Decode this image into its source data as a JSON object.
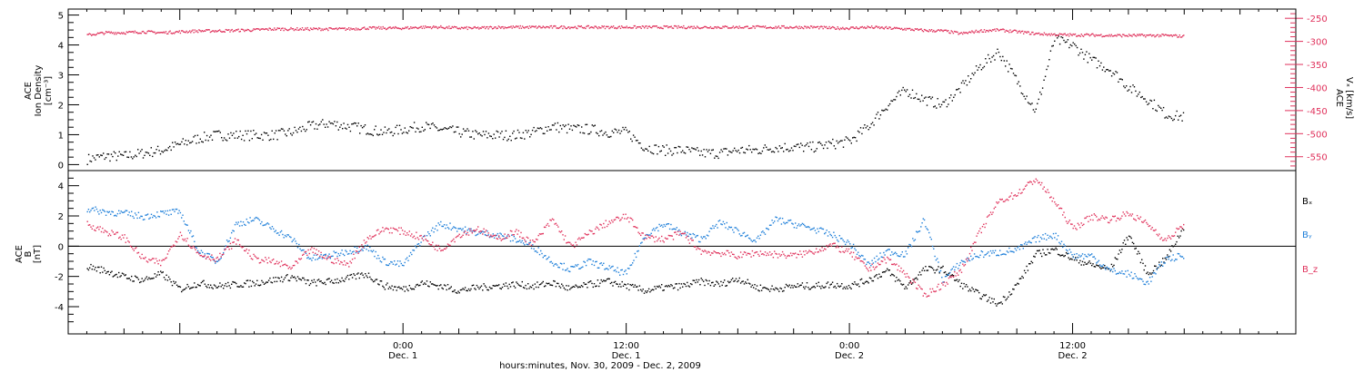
{
  "colors": {
    "black": "#000000",
    "red": "#e0325c",
    "blue": "#1e7fd9"
  },
  "chart_data": [
    {
      "type": "scatter",
      "panel": "density",
      "ylabel_lines": [
        "ACE",
        "Ion Density",
        "[cm⁻³]"
      ],
      "ylim": [
        -0.2,
        5.2
      ],
      "yticks": [
        "0",
        "1",
        "2",
        "3",
        "4",
        "5"
      ],
      "y2label_lines": [
        "ACE",
        "Vₓ [km/s]"
      ],
      "y2lim": [
        -580,
        -230
      ],
      "y2ticks": [
        "-250",
        "-300",
        "-350",
        "-400",
        "-450",
        "-500",
        "-550"
      ],
      "x_range_hours": [
        -18,
        48
      ],
      "series": [
        {
          "color_key": "black",
          "axis": "left",
          "x": [
            -17,
            -16,
            -15,
            -14,
            -13,
            -12,
            -11,
            -10,
            -9,
            -8,
            -7,
            -6,
            -5,
            -4,
            -3,
            -2,
            -1,
            0,
            1,
            2,
            3,
            4,
            5,
            6,
            7,
            8,
            9,
            10,
            11,
            12,
            13,
            14,
            15,
            16,
            17,
            18,
            19,
            20,
            21,
            22,
            23,
            24,
            25,
            26,
            27,
            28,
            29,
            30,
            31,
            32,
            33,
            34,
            35,
            36,
            37,
            38,
            39,
            40,
            41,
            42
          ],
          "y": [
            0.2,
            0.3,
            0.3,
            0.4,
            0.5,
            0.7,
            0.9,
            1.0,
            1.0,
            1.0,
            1.0,
            1.1,
            1.3,
            1.4,
            1.3,
            1.2,
            1.1,
            1.2,
            1.3,
            1.2,
            1.1,
            1.0,
            1.0,
            1.0,
            1.1,
            1.3,
            1.2,
            1.2,
            1.1,
            1.1,
            0.6,
            0.5,
            0.5,
            0.4,
            0.4,
            0.5,
            0.5,
            0.6,
            0.6,
            0.6,
            0.7,
            0.8,
            1.3,
            2.0,
            2.5,
            2.2,
            2.0,
            2.6,
            3.3,
            3.8,
            2.8,
            1.8,
            4.2,
            4.0,
            3.5,
            3.2,
            2.6,
            2.2,
            1.7,
            1.6
          ]
        },
        {
          "color_key": "red",
          "axis": "right",
          "x": [
            -17,
            -16,
            -15,
            -14,
            -13,
            -12,
            -11,
            -10,
            -9,
            -8,
            -7,
            -6,
            -5,
            -4,
            -3,
            -2,
            -1,
            0,
            1,
            2,
            3,
            4,
            5,
            6,
            7,
            8,
            9,
            10,
            11,
            12,
            13,
            14,
            15,
            16,
            17,
            18,
            19,
            20,
            21,
            22,
            23,
            24,
            25,
            26,
            27,
            28,
            29,
            30,
            31,
            32,
            33,
            34,
            35,
            36,
            37,
            38,
            39,
            40,
            41,
            42
          ],
          "y": [
            -285,
            -280,
            -280,
            -278,
            -280,
            -278,
            -276,
            -276,
            -275,
            -274,
            -272,
            -272,
            -272,
            -272,
            -272,
            -270,
            -270,
            -270,
            -268,
            -268,
            -270,
            -270,
            -268,
            -268,
            -268,
            -268,
            -268,
            -268,
            -268,
            -268,
            -268,
            -268,
            -268,
            -268,
            -268,
            -268,
            -268,
            -268,
            -268,
            -268,
            -270,
            -270,
            -268,
            -270,
            -272,
            -275,
            -276,
            -282,
            -276,
            -274,
            -278,
            -282,
            -284,
            -285,
            -285,
            -286,
            -286,
            -286,
            -286,
            -288
          ]
        }
      ]
    },
    {
      "type": "scatter",
      "panel": "magnetic_field",
      "ylabel_lines": [
        "ACE",
        "B",
        "[nT]"
      ],
      "ylim": [
        -5.8,
        5.0
      ],
      "yticks": [
        "-4",
        "-2",
        "0",
        "2",
        "4"
      ],
      "x_range_hours": [
        -18,
        48
      ],
      "xticks": [
        {
          "hour": 0,
          "time": "0:00",
          "day": "Dec. 1"
        },
        {
          "hour": 12,
          "time": "12:00",
          "day": "Dec. 1"
        },
        {
          "hour": 24,
          "time": "0:00",
          "day": "Dec. 2"
        },
        {
          "hour": 36,
          "time": "12:00",
          "day": "Dec. 2"
        }
      ],
      "xlabel": "hours:minutes, Nov. 30, 2009 - Dec. 2, 2009",
      "series": [
        {
          "name": "Bₓ",
          "color_key": "black",
          "x": [
            -17,
            -16,
            -15,
            -14,
            -13,
            -12,
            -11,
            -10,
            -9,
            -8,
            -7,
            -6,
            -5,
            -4,
            -3,
            -2,
            -1,
            0,
            1,
            2,
            3,
            4,
            5,
            6,
            7,
            8,
            9,
            10,
            11,
            12,
            13,
            14,
            15,
            16,
            17,
            18,
            19,
            20,
            21,
            22,
            23,
            24,
            25,
            26,
            27,
            28,
            29,
            30,
            31,
            32,
            33,
            34,
            35,
            36,
            37,
            38,
            39,
            40,
            41,
            42
          ],
          "y": [
            -1.3,
            -1.6,
            -2.0,
            -2.2,
            -1.8,
            -2.8,
            -2.4,
            -2.6,
            -2.5,
            -2.4,
            -2.2,
            -2.0,
            -2.4,
            -2.3,
            -2.1,
            -1.8,
            -2.6,
            -2.8,
            -2.4,
            -2.6,
            -2.9,
            -2.7,
            -2.6,
            -2.5,
            -2.6,
            -2.4,
            -2.8,
            -2.5,
            -2.3,
            -2.6,
            -2.9,
            -2.7,
            -2.6,
            -2.3,
            -2.5,
            -2.1,
            -2.7,
            -2.8,
            -2.6,
            -2.6,
            -2.5,
            -2.6,
            -2.2,
            -1.6,
            -2.7,
            -1.5,
            -1.5,
            -2.5,
            -3.2,
            -3.8,
            -2.5,
            -0.5,
            -0.2,
            -0.8,
            -1.2,
            -1.5,
            0.8,
            -1.8,
            -0.8,
            1.4
          ]
        },
        {
          "name": "Bᵧ",
          "color_key": "blue",
          "x": [
            -17,
            -16,
            -15,
            -14,
            -13,
            -12,
            -11,
            -10,
            -9,
            -8,
            -7,
            -6,
            -5,
            -4,
            -3,
            -2,
            -1,
            0,
            1,
            2,
            3,
            4,
            5,
            6,
            7,
            8,
            9,
            10,
            11,
            12,
            13,
            14,
            15,
            16,
            17,
            18,
            19,
            20,
            21,
            22,
            23,
            24,
            25,
            26,
            27,
            28,
            29,
            30,
            31,
            32,
            33,
            34,
            35,
            36,
            37,
            38,
            39,
            40,
            41,
            42
          ],
          "y": [
            2.5,
            2.3,
            2.2,
            2.0,
            2.2,
            2.3,
            -0.3,
            -1.0,
            1.5,
            1.8,
            1.2,
            0.5,
            -0.8,
            -0.6,
            -0.3,
            0.0,
            -1.0,
            -1.2,
            0.5,
            1.5,
            1.2,
            0.9,
            0.8,
            0.5,
            0.0,
            -1.0,
            -1.5,
            -1.0,
            -1.4,
            -1.8,
            0.8,
            1.5,
            0.9,
            0.5,
            1.6,
            1.0,
            0.4,
            1.8,
            1.5,
            1.2,
            0.8,
            0.2,
            -1.2,
            -0.3,
            -0.5,
            1.8,
            -2.2,
            -1.0,
            -0.5,
            -0.4,
            -0.2,
            0.5,
            0.8,
            -0.6,
            -0.6,
            -1.6,
            -1.8,
            -2.4,
            -0.8,
            -0.6
          ]
        },
        {
          "name": "B_z",
          "color_key": "red",
          "x": [
            -17,
            -16,
            -15,
            -14,
            -13,
            -12,
            -11,
            -10,
            -9,
            -8,
            -7,
            -6,
            -5,
            -4,
            -3,
            -2,
            -1,
            0,
            1,
            2,
            3,
            4,
            5,
            6,
            7,
            8,
            9,
            10,
            11,
            12,
            13,
            14,
            15,
            16,
            17,
            18,
            19,
            20,
            21,
            22,
            23,
            24,
            25,
            26,
            27,
            28,
            29,
            30,
            31,
            32,
            33,
            34,
            35,
            36,
            37,
            38,
            39,
            40,
            41,
            42
          ],
          "y": [
            1.5,
            1.0,
            0.6,
            -0.8,
            -1.1,
            0.9,
            -0.5,
            -0.8,
            0.4,
            -0.8,
            -1.0,
            -1.4,
            -0.2,
            -0.8,
            -1.2,
            0.5,
            1.2,
            1.0,
            0.6,
            -0.2,
            0.8,
            1.2,
            0.5,
            1.0,
            0.2,
            1.8,
            0.0,
            0.9,
            1.6,
            2.0,
            0.6,
            0.5,
            0.9,
            -0.3,
            -0.4,
            -0.6,
            -0.4,
            -0.5,
            -0.6,
            -0.3,
            0.1,
            -0.4,
            -1.5,
            -0.8,
            -1.8,
            -3.2,
            -2.5,
            -1.5,
            1.0,
            3.0,
            3.5,
            4.5,
            3.0,
            1.2,
            2.0,
            1.8,
            2.2,
            1.5,
            0.4,
            1.5
          ]
        }
      ]
    }
  ]
}
